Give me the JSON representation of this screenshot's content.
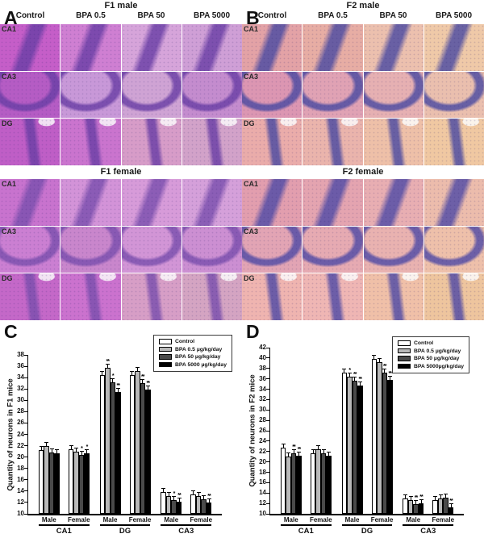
{
  "histology": {
    "row_labels": [
      "CA1",
      "CA3",
      "DG"
    ],
    "col_labels": [
      "Control",
      "BPA 0.5",
      "BPA 50",
      "BPA 5000"
    ],
    "sections": [
      {
        "panel_letter": "A",
        "title": "F1 male",
        "band_color": "#6b3fa6",
        "tile_colors": [
          "#c55ec8",
          "#cf7fd2",
          "#d6a4da",
          "#cf9fd6",
          "#b55cc4",
          "#c898d8",
          "#cfa3d4",
          "#c48cce",
          "#bf5ec6",
          "#ca74ce",
          "#d79cc8",
          "#d2a2c9"
        ]
      },
      {
        "panel_letter": "B",
        "title": "F2 male",
        "band_color": "#4c4ba2",
        "tile_colors": [
          "#e3a2a6",
          "#e7ada4",
          "#ecc0ae",
          "#efc9a8",
          "#dc96b2",
          "#e0a2b4",
          "#e6b0b2",
          "#eabfae",
          "#eaacaa",
          "#eab4ac",
          "#eec0a8",
          "#f0c8a2"
        ]
      },
      {
        "panel_letter": "",
        "title": "F1 female",
        "band_color": "#7b4fae",
        "tile_colors": [
          "#c873ce",
          "#d393d8",
          "#d79bd9",
          "#d5a0da",
          "#cb7fd2",
          "#c986cc",
          "#d295d6",
          "#cc8fd2",
          "#c468c8",
          "#cb72ce",
          "#d79ec6",
          "#d4a4c2"
        ]
      },
      {
        "panel_letter": "",
        "title": "F2 female",
        "band_color": "#514ba6",
        "tile_colors": [
          "#e29eae",
          "#e4a4b0",
          "#e8aeb2",
          "#ecbcac",
          "#e2a4b4",
          "#e6aab2",
          "#e9b2b0",
          "#eec0aa",
          "#efb4b0",
          "#efb6b4",
          "#f0c0a8",
          "#eec59e"
        ]
      }
    ]
  },
  "chart_data": [
    {
      "id": "C",
      "type": "bar",
      "title": "",
      "ylabel": "Quantity of neurons in F1 mice",
      "xlabel": "",
      "ylim": [
        10,
        38
      ],
      "yticks": [
        10,
        12,
        14,
        16,
        18,
        20,
        22,
        24,
        26,
        28,
        30,
        32,
        34,
        36,
        38
      ],
      "grid": false,
      "legend_position": "top-right",
      "legend": [
        "Control",
        "BPA 0.5 µg/kg/day",
        "BPA 50 µg/kg/day",
        "BPA 5000 µg/kg/day"
      ],
      "series_colors": [
        "#ffffff",
        "#b9b9b9",
        "#4a4a4a",
        "#000000"
      ],
      "regions": [
        {
          "label": "CA1",
          "groups": [
            {
              "sex": "Male",
              "values": [
                21.2,
                22.0,
                20.8,
                20.6
              ],
              "sig": [
                "",
                "",
                "",
                ""
              ]
            },
            {
              "sex": "Female",
              "values": [
                21.4,
                21.0,
                20.4,
                20.6
              ],
              "sig": [
                "",
                "",
                "*",
                "*"
              ]
            }
          ]
        },
        {
          "label": "DG",
          "groups": [
            {
              "sex": "Male",
              "values": [
                34.5,
                35.8,
                33.2,
                31.5
              ],
              "sig": [
                "",
                "**",
                "*",
                "**"
              ]
            },
            {
              "sex": "Female",
              "values": [
                34.5,
                35.2,
                33.1,
                31.9
              ],
              "sig": [
                "",
                "",
                "**",
                "**"
              ]
            }
          ]
        },
        {
          "label": "CA3",
          "groups": [
            {
              "sex": "Male",
              "values": [
                13.8,
                13.1,
                12.4,
                12.1
              ],
              "sig": [
                "",
                "",
                "*",
                "**"
              ]
            },
            {
              "sex": "Female",
              "values": [
                13.4,
                13.1,
                12.6,
                12.0
              ],
              "sig": [
                "",
                "",
                "",
                "**"
              ]
            }
          ]
        }
      ]
    },
    {
      "id": "D",
      "type": "bar",
      "title": "",
      "ylabel": "Quantity of neurons in F2 mice",
      "xlabel": "",
      "ylim": [
        10,
        42
      ],
      "yticks": [
        10,
        12,
        14,
        16,
        18,
        20,
        22,
        24,
        26,
        28,
        30,
        32,
        34,
        36,
        38,
        40,
        42
      ],
      "grid": false,
      "legend_position": "top-right",
      "legend": [
        "Control",
        "BPA 0.5 µg/kg/day",
        "BPA 50 µg/kg/day",
        "BPA 5000µg/kg/day"
      ],
      "series_colors": [
        "#ffffff",
        "#b9b9b9",
        "#4a4a4a",
        "#000000"
      ],
      "regions": [
        {
          "label": "CA1",
          "groups": [
            {
              "sex": "Male",
              "values": [
                22.8,
                21.0,
                21.7,
                21.2
              ],
              "sig": [
                "",
                "",
                "**",
                "**"
              ]
            },
            {
              "sex": "Female",
              "values": [
                21.6,
                22.5,
                21.6,
                21.2
              ],
              "sig": [
                "",
                "",
                "",
                ""
              ]
            }
          ]
        },
        {
          "label": "DG",
          "groups": [
            {
              "sex": "Male",
              "values": [
                37.2,
                36.4,
                35.7,
                34.7
              ],
              "sig": [
                "",
                "*",
                "**",
                "**"
              ]
            },
            {
              "sex": "Female",
              "values": [
                39.9,
                39.2,
                37.2,
                35.8
              ],
              "sig": [
                "",
                "",
                "**",
                "**"
              ]
            }
          ]
        },
        {
          "label": "CA3",
          "groups": [
            {
              "sex": "Male",
              "values": [
                12.9,
                12.6,
                11.8,
                12.0
              ],
              "sig": [
                "",
                "",
                "**",
                "**"
              ]
            },
            {
              "sex": "Female",
              "values": [
                12.6,
                12.9,
                13.1,
                11.3
              ],
              "sig": [
                "",
                "",
                "",
                "**"
              ]
            }
          ]
        }
      ]
    }
  ]
}
